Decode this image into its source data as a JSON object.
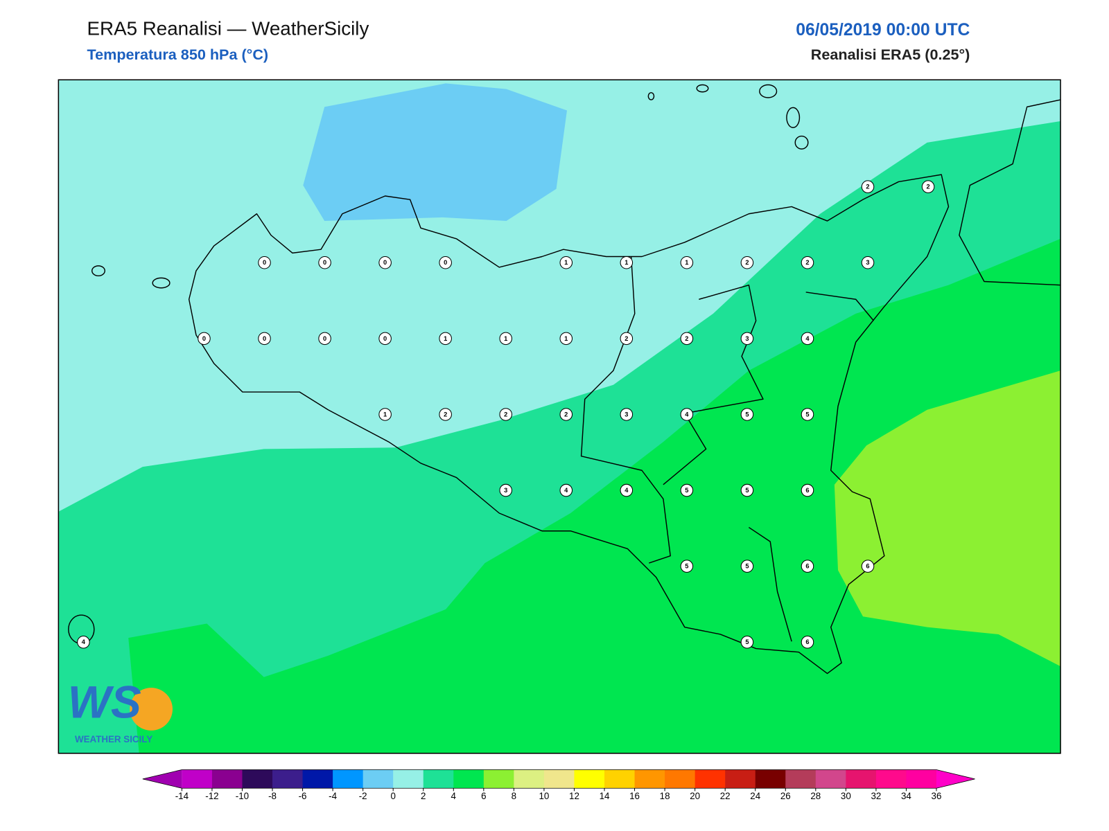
{
  "header": {
    "title": "ERA5 Reanalisi — WeatherSicily",
    "subtitle": "Temperatura 850 hPa (°C)",
    "datetime": "06/05/2019 00:00 UTC",
    "source": "Reanalisi ERA5 (0.25°)"
  },
  "map": {
    "grid": {
      "rows": [
        [
          null,
          null,
          null,
          null,
          null,
          null,
          null,
          null,
          null,
          null,
          null,
          null,
          null,
          2,
          2
        ],
        [
          null,
          null,
          null,
          0,
          0,
          0,
          0,
          null,
          1,
          1,
          1,
          2,
          2,
          3,
          null
        ],
        [
          null,
          null,
          0,
          0,
          0,
          0,
          1,
          1,
          1,
          2,
          2,
          3,
          4,
          null,
          null
        ],
        [
          null,
          null,
          null,
          null,
          null,
          1,
          2,
          2,
          2,
          3,
          4,
          5,
          5,
          null,
          null
        ],
        [
          null,
          null,
          null,
          null,
          null,
          null,
          null,
          3,
          4,
          4,
          5,
          5,
          6,
          null,
          null
        ],
        [
          null,
          null,
          null,
          null,
          null,
          null,
          null,
          null,
          null,
          null,
          5,
          5,
          6,
          6,
          null
        ],
        [
          4,
          null,
          null,
          null,
          null,
          null,
          null,
          null,
          null,
          null,
          null,
          5,
          6,
          null,
          null
        ]
      ]
    }
  },
  "colorbar": {
    "ticks": [
      -14,
      -12,
      -10,
      -8,
      -6,
      -4,
      -2,
      0,
      2,
      4,
      6,
      8,
      10,
      12,
      14,
      16,
      18,
      20,
      22,
      24,
      26,
      28,
      30,
      32,
      34,
      36
    ],
    "colors": [
      "#c000c8",
      "#8a0090",
      "#2d0a5a",
      "#3c1e8c",
      "#0018a8",
      "#0096ff",
      "#6ccdf4",
      "#96f0e6",
      "#1ee196",
      "#00e650",
      "#8cf032",
      "#dcf082",
      "#f0e68c",
      "#ffff00",
      "#ffd200",
      "#ff9600",
      "#ff7800",
      "#ff3200",
      "#c81e14",
      "#780000",
      "#b43c5a",
      "#d2468c",
      "#e6146e",
      "#ff0a8c",
      "#ff00a0"
    ],
    "under": "#a000b0",
    "over": "#ff00c8"
  },
  "logo": {
    "text": "WS",
    "subtext": "WEATHER SICILY"
  }
}
